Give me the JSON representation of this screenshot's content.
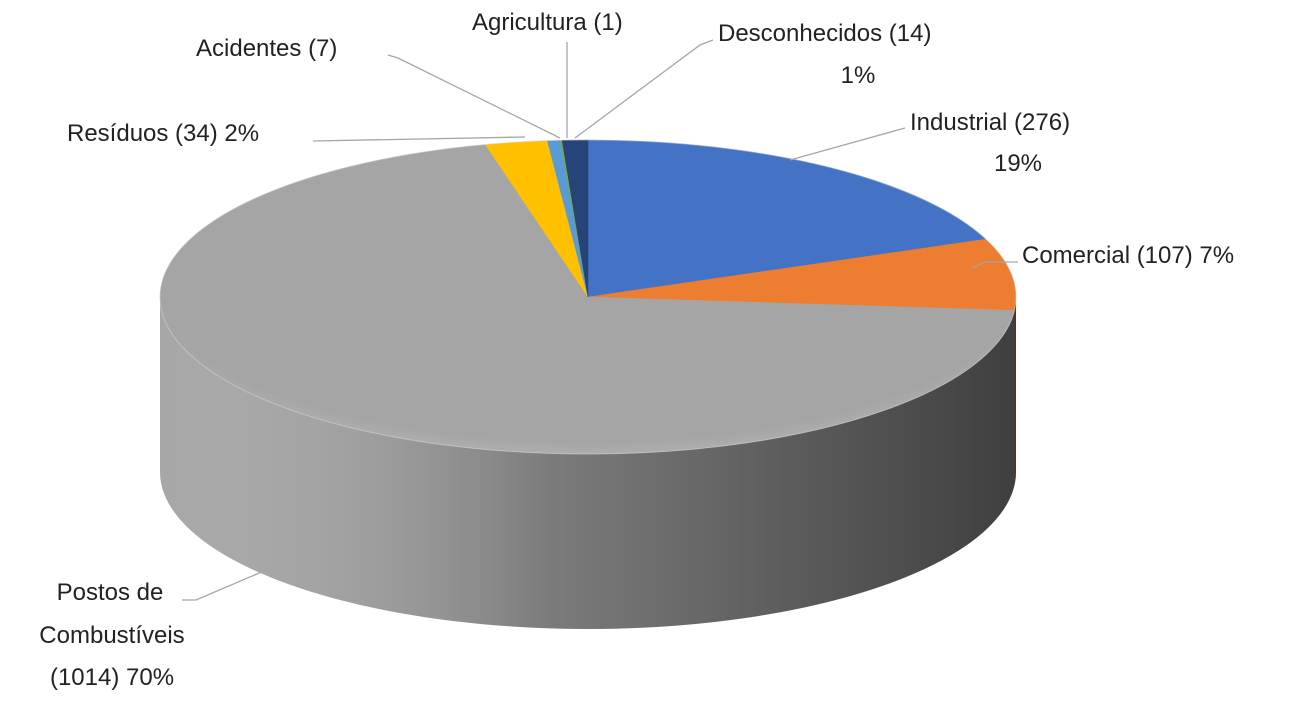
{
  "chart_data": {
    "type": "pie3d",
    "labels": [
      [
        "Industrial (276)",
        "19%"
      ],
      [
        "Comercial (107) 7%"
      ],
      [
        "Postos de",
        "Combustíveis",
        "(1014) 70%"
      ],
      [
        "Resíduos (34) 2%"
      ],
      [
        "Acidentes (7)"
      ],
      [
        "Agricultura (1)"
      ],
      [
        "Desconhecidos (14)",
        "1%"
      ]
    ],
    "values": [
      276,
      107,
      1014,
      34,
      7,
      1,
      14
    ],
    "colors": [
      "#4472c4",
      "#ed7d31",
      "#a5a5a5",
      "#ffc000",
      "#5b9bd5",
      "#70ad47",
      "#264478"
    ]
  }
}
